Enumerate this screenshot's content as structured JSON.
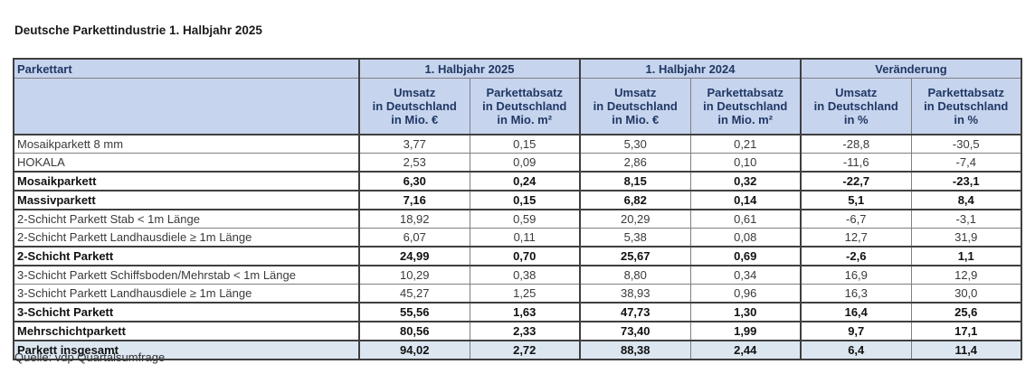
{
  "page_title": "Deutsche Parkettindustrie 1. Halbjahr 2025",
  "source_note": "Quelle: vdp Quartalsumfrage",
  "colors": {
    "header_bg": "#c7d4ee",
    "header_text": "#1f3864",
    "total_row_bg": "#dce6f1",
    "border_thin": "#7f7f7f",
    "border_thick": "#3f3f3f"
  },
  "table": {
    "label_header": "Parkettart",
    "groups": [
      "1. Halbjahr 2025",
      "1. Halbjahr 2024",
      "Veränderung"
    ],
    "sub_headers": [
      "Umsatz\nin Deutschland\nin Mio. €",
      "Parkettabsatz\nin Deutschland\nin Mio. m²",
      "Umsatz\nin Deutschland\nin Mio. €",
      "Parkettabsatz\nin Deutschland\nin Mio. m²",
      "Umsatz\nin Deutschland\nin %",
      "Parkettabsatz\nin Deutschland\nin %"
    ],
    "rows": [
      {
        "label": "Mosaikparkett 8 mm",
        "bold": false,
        "highlight": false,
        "values": [
          "3,77",
          "0,15",
          "5,30",
          "0,21",
          "-28,8",
          "-30,5"
        ]
      },
      {
        "label": "HOKALA",
        "bold": false,
        "highlight": false,
        "values": [
          "2,53",
          "0,09",
          "2,86",
          "0,10",
          "-11,6",
          "-7,4"
        ]
      },
      {
        "label": "Mosaikparkett",
        "bold": true,
        "highlight": false,
        "values": [
          "6,30",
          "0,24",
          "8,15",
          "0,32",
          "-22,7",
          "-23,1"
        ]
      },
      {
        "label": "Massivparkett",
        "bold": true,
        "highlight": false,
        "values": [
          "7,16",
          "0,15",
          "6,82",
          "0,14",
          "5,1",
          "8,4"
        ]
      },
      {
        "label": "2-Schicht Parkett Stab < 1m Länge",
        "bold": false,
        "highlight": false,
        "values": [
          "18,92",
          "0,59",
          "20,29",
          "0,61",
          "-6,7",
          "-3,1"
        ]
      },
      {
        "label": "2-Schicht Parkett Landhausdiele ≥ 1m Länge",
        "bold": false,
        "highlight": false,
        "values": [
          "6,07",
          "0,11",
          "5,38",
          "0,08",
          "12,7",
          "31,9"
        ]
      },
      {
        "label": "2-Schicht Parkett",
        "bold": true,
        "highlight": false,
        "values": [
          "24,99",
          "0,70",
          "25,67",
          "0,69",
          "-2,6",
          "1,1"
        ]
      },
      {
        "label": "3-Schicht Parkett Schiffsboden/Mehrstab < 1m Länge",
        "bold": false,
        "highlight": false,
        "values": [
          "10,29",
          "0,38",
          "8,80",
          "0,34",
          "16,9",
          "12,9"
        ]
      },
      {
        "label": "3-Schicht Parkett Landhausdiele ≥ 1m Länge",
        "bold": false,
        "highlight": false,
        "values": [
          "45,27",
          "1,25",
          "38,93",
          "0,96",
          "16,3",
          "30,0"
        ]
      },
      {
        "label": "3-Schicht Parkett",
        "bold": true,
        "highlight": false,
        "values": [
          "55,56",
          "1,63",
          "47,73",
          "1,30",
          "16,4",
          "25,6"
        ]
      },
      {
        "label": "Mehrschichtparkett",
        "bold": true,
        "highlight": false,
        "values": [
          "80,56",
          "2,33",
          "73,40",
          "1,99",
          "9,7",
          "17,1"
        ]
      },
      {
        "label": "Parkett insgesamt",
        "bold": true,
        "highlight": true,
        "values": [
          "94,02",
          "2,72",
          "88,38",
          "2,44",
          "6,4",
          "11,4"
        ]
      }
    ]
  }
}
